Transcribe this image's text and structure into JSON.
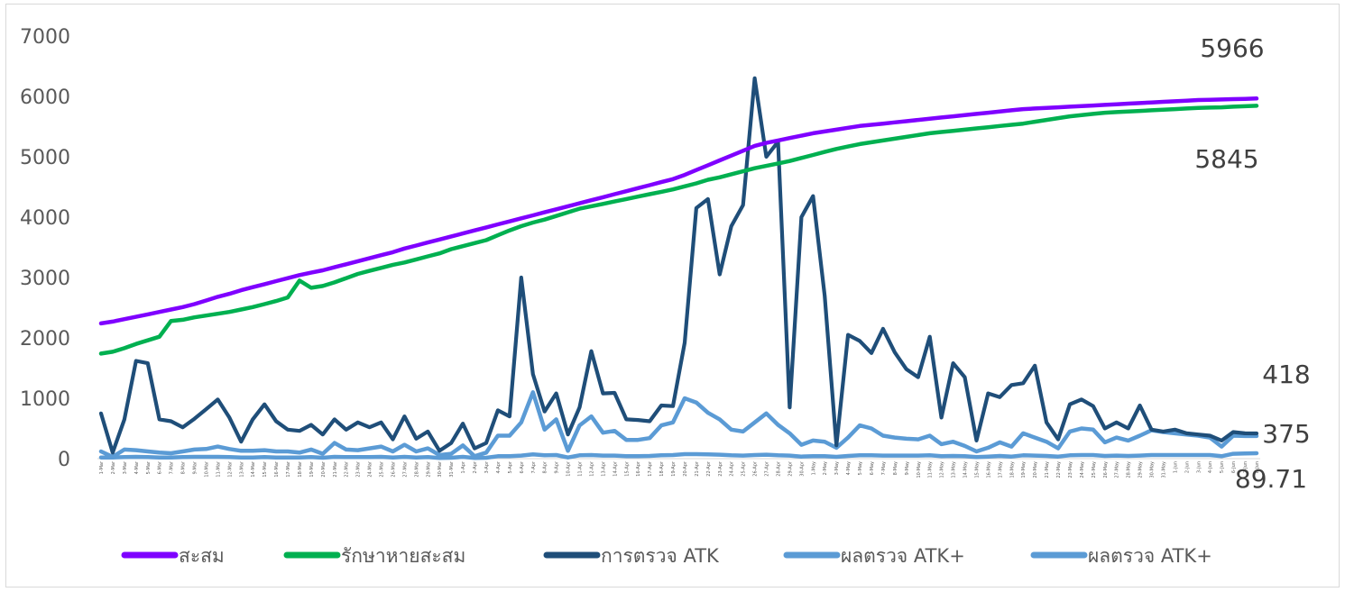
{
  "chart_data": {
    "type": "line",
    "title": "",
    "xlabel": "",
    "ylabel": "",
    "ylim": [
      0,
      7000
    ],
    "yticks": [
      0,
      1000,
      2000,
      3000,
      4000,
      5000,
      6000,
      7000
    ],
    "grid": false,
    "legend_position": "bottom",
    "categories": [
      "1-Mar",
      "2-Mar",
      "3-Mar",
      "4-Mar",
      "5-Mar",
      "6-Mar",
      "7-Mar",
      "8-Mar",
      "9-Mar",
      "10-Mar",
      "11-Mar",
      "12-Mar",
      "13-Mar",
      "14-Mar",
      "15-Mar",
      "16-Mar",
      "17-Mar",
      "18-Mar",
      "19-Mar",
      "20-Mar",
      "21-Mar",
      "22-Mar",
      "23-Mar",
      "24-Mar",
      "25-Mar",
      "26-Mar",
      "27-Mar",
      "28-Mar",
      "29-Mar",
      "30-Mar",
      "31-Mar",
      "1-Apr",
      "2-Apr",
      "3-Apr",
      "4-Apr",
      "5-Apr",
      "6-Apr",
      "7-Apr",
      "8-Apr",
      "9-Apr",
      "10-Apr",
      "11-Apr",
      "12-Apr",
      "13-Apr",
      "14-Apr",
      "15-Apr",
      "16-Apr",
      "17-Apr",
      "18-Apr",
      "19-Apr",
      "20-Apr",
      "21-Apr",
      "22-Apr",
      "23-Apr",
      "24-Apr",
      "25-Apr",
      "26-Apr",
      "27-Apr",
      "28-Apr",
      "29-Apr",
      "30-Apr",
      "1-May",
      "2-May",
      "3-May",
      "4-May",
      "5-May",
      "6-May",
      "7-May",
      "8-May",
      "9-May",
      "10-May",
      "11-May",
      "12-May",
      "13-May",
      "14-May",
      "15-May",
      "16-May",
      "17-May",
      "18-May",
      "19-May",
      "20-May",
      "21-May",
      "22-May",
      "23-May",
      "24-May",
      "25-May",
      "26-May",
      "27-May",
      "28-May",
      "29-May",
      "30-May",
      "31-May",
      "1-Jun",
      "2-Jun",
      "3-Jun",
      "4-Jun",
      "5-Jun",
      "6-Jun",
      "7-Jun",
      "8-Jun"
    ],
    "series": [
      {
        "name": "สะสม",
        "color": "#7f00ff",
        "values": [
          2240,
          2270,
          2310,
          2350,
          2390,
          2430,
          2470,
          2510,
          2560,
          2620,
          2680,
          2730,
          2790,
          2840,
          2890,
          2940,
          2990,
          3040,
          3080,
          3120,
          3170,
          3220,
          3270,
          3320,
          3370,
          3420,
          3480,
          3530,
          3580,
          3630,
          3680,
          3730,
          3780,
          3830,
          3880,
          3930,
          3980,
          4030,
          4080,
          4130,
          4180,
          4230,
          4280,
          4330,
          4380,
          4430,
          4480,
          4530,
          4580,
          4630,
          4700,
          4780,
          4860,
          4940,
          5020,
          5100,
          5180,
          5230,
          5270,
          5310,
          5350,
          5390,
          5420,
          5450,
          5480,
          5510,
          5530,
          5550,
          5570,
          5590,
          5610,
          5630,
          5650,
          5670,
          5690,
          5710,
          5730,
          5750,
          5770,
          5790,
          5800,
          5810,
          5820,
          5830,
          5840,
          5850,
          5860,
          5870,
          5880,
          5890,
          5900,
          5910,
          5920,
          5930,
          5940,
          5945,
          5950,
          5955,
          5960,
          5966
        ]
      },
      {
        "name": "รักษาหายสะสม",
        "color": "#00b050",
        "values": [
          1740,
          1770,
          1830,
          1900,
          1960,
          2020,
          2280,
          2300,
          2340,
          2370,
          2400,
          2430,
          2470,
          2510,
          2560,
          2610,
          2670,
          2950,
          2830,
          2860,
          2920,
          2990,
          3060,
          3110,
          3160,
          3210,
          3250,
          3300,
          3350,
          3400,
          3470,
          3520,
          3570,
          3620,
          3700,
          3780,
          3850,
          3910,
          3960,
          4020,
          4080,
          4140,
          4180,
          4220,
          4260,
          4300,
          4340,
          4380,
          4420,
          4460,
          4510,
          4560,
          4620,
          4660,
          4710,
          4760,
          4810,
          4850,
          4890,
          4930,
          4980,
          5030,
          5080,
          5130,
          5170,
          5210,
          5240,
          5270,
          5300,
          5330,
          5360,
          5390,
          5410,
          5430,
          5450,
          5470,
          5490,
          5510,
          5530,
          5550,
          5580,
          5610,
          5640,
          5670,
          5690,
          5710,
          5730,
          5740,
          5750,
          5760,
          5770,
          5780,
          5790,
          5800,
          5810,
          5815,
          5820,
          5830,
          5838,
          5845
        ]
      },
      {
        "name": "การตรวจ ATK",
        "color": "#1f4e79",
        "values": [
          750,
          100,
          650,
          1620,
          1580,
          650,
          620,
          520,
          660,
          820,
          980,
          680,
          280,
          650,
          900,
          620,
          480,
          460,
          560,
          400,
          650,
          480,
          600,
          520,
          600,
          320,
          700,
          330,
          450,
          130,
          260,
          580,
          170,
          260,
          800,
          700,
          3000,
          1400,
          780,
          1080,
          400,
          850,
          1780,
          1080,
          1090,
          650,
          640,
          620,
          880,
          870,
          1920,
          4150,
          4300,
          3050,
          3850,
          4200,
          6300,
          5000,
          5250,
          850,
          4000,
          4350,
          2700,
          220,
          2050,
          1950,
          1750,
          2150,
          1760,
          1480,
          1350,
          2020,
          680,
          1580,
          1350,
          300,
          1080,
          1020,
          1220,
          1250,
          1540,
          600,
          320,
          900,
          980,
          870,
          500,
          600,
          500,
          880,
          480,
          450,
          480,
          420,
          400,
          380,
          300,
          440,
          420,
          418
        ]
      },
      {
        "name": "ผลตรวจ ATK+",
        "color": "#5b9bd5",
        "values": [
          120,
          30,
          150,
          140,
          120,
          100,
          90,
          120,
          150,
          160,
          200,
          160,
          130,
          130,
          140,
          120,
          120,
          100,
          150,
          80,
          260,
          150,
          140,
          170,
          200,
          120,
          230,
          120,
          170,
          60,
          80,
          220,
          40,
          100,
          380,
          380,
          600,
          1100,
          480,
          650,
          130,
          550,
          700,
          430,
          460,
          310,
          310,
          340,
          550,
          600,
          1000,
          930,
          760,
          650,
          480,
          450,
          600,
          750,
          560,
          420,
          230,
          300,
          280,
          180,
          350,
          550,
          500,
          380,
          350,
          330,
          320,
          380,
          240,
          280,
          210,
          120,
          180,
          270,
          200,
          420,
          350,
          280,
          170,
          450,
          500,
          480,
          270,
          350,
          300,
          380,
          470,
          440,
          420,
          400,
          380,
          350,
          200,
          380,
          375,
          375
        ]
      },
      {
        "name": "ผลตรวจ ATK+",
        "color": "#5b9bd5",
        "values": [
          20,
          20,
          25,
          30,
          25,
          20,
          20,
          25,
          30,
          30,
          30,
          25,
          20,
          20,
          25,
          20,
          20,
          20,
          25,
          15,
          30,
          25,
          25,
          25,
          30,
          20,
          30,
          20,
          25,
          10,
          15,
          30,
          10,
          15,
          40,
          40,
          50,
          70,
          55,
          60,
          20,
          55,
          60,
          50,
          50,
          40,
          40,
          45,
          55,
          60,
          75,
          75,
          70,
          65,
          55,
          50,
          60,
          65,
          55,
          50,
          35,
          40,
          40,
          30,
          45,
          55,
          55,
          50,
          50,
          50,
          50,
          55,
          40,
          45,
          40,
          25,
          35,
          45,
          35,
          55,
          50,
          45,
          35,
          55,
          60,
          60,
          45,
          50,
          45,
          50,
          60,
          60,
          60,
          60,
          60,
          60,
          40,
          80,
          85,
          89.71
        ]
      }
    ],
    "end_labels": [
      "5966",
      "5845",
      "418",
      "375",
      "89.71"
    ]
  }
}
